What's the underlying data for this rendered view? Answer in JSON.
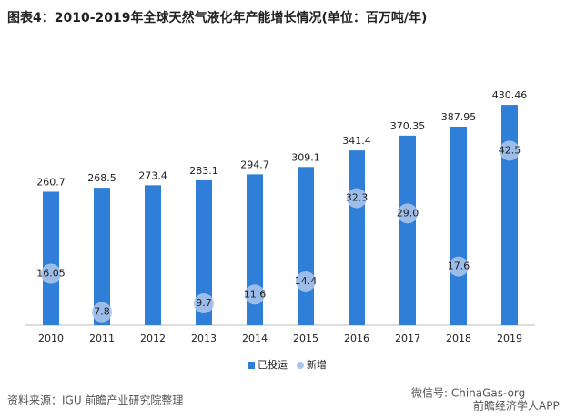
{
  "chart_data": {
    "type": "bar",
    "title": "图表4：2010-2019年全球天然气液化年产能增长情况(单位：百万吨/年)",
    "categories": [
      "2010",
      "2011",
      "2012",
      "2013",
      "2014",
      "2015",
      "2016",
      "2017",
      "2018",
      "2019"
    ],
    "series": [
      {
        "name": "已投运",
        "color": "#2f7ed8",
        "values": [
          260.7,
          268.5,
          273.4,
          283.1,
          294.7,
          309.1,
          341.4,
          370.35,
          387.95,
          430.46
        ]
      },
      {
        "name": "新增",
        "color": "#a9c3ec",
        "axis": "y2",
        "values": [
          16.05,
          7.8,
          null,
          9.7,
          11.6,
          14.4,
          32.3,
          29.0,
          17.6,
          42.5
        ],
        "value_labels": [
          "16.05",
          "7.8",
          null,
          "9.7",
          "11.6",
          "14.4",
          "32.3",
          "29.0",
          "17.6",
          "42.5"
        ]
      }
    ],
    "ylim": [
      0,
      500
    ],
    "y2lim": [
      5,
      60
    ],
    "legend": "bottom",
    "source": "资料来源：IGU 前瞻产业研究院整理",
    "watermarks": [
      "微信号: ChinaGas-org",
      "前瞻经济学人APP"
    ]
  }
}
